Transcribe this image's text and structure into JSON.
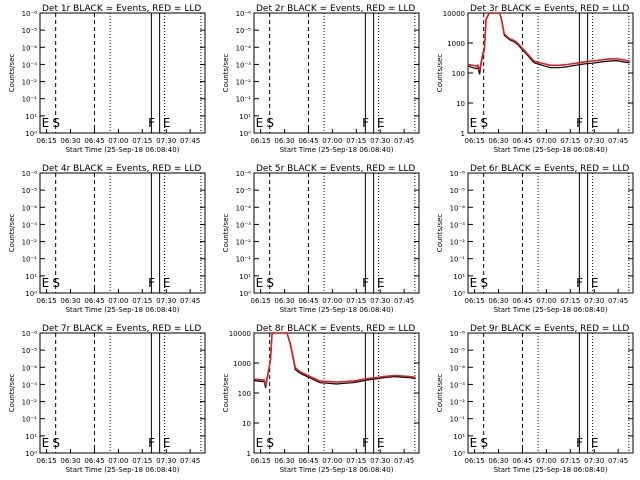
{
  "chart_data": [
    {
      "type": "line",
      "title": "Det 1r BLACK = Events, RED = LLD",
      "ylabel": "Counts/sec",
      "xlabel": "Start Time (25-Sep-18 06:08:40)",
      "yscale": "log",
      "yticks": [
        "10⁰",
        "10¹",
        "10⁻¹",
        "10⁻²",
        "10⁻³",
        "10⁻⁴",
        "10⁻⁵",
        "10⁻⁶"
      ],
      "xticks": [
        "06:15",
        "06:30",
        "06:45",
        "07:00",
        "07:15",
        "07:30",
        "07:45"
      ],
      "markers": [
        "E",
        "S",
        "F",
        "E"
      ],
      "series": []
    },
    {
      "type": "line",
      "title": "Det 2r BLACK = Events, RED = LLD",
      "ylabel": "Counts/sec",
      "xlabel": "Start Time (25-Sep-18 06:08:40)",
      "yscale": "log",
      "yticks": [
        "10⁰",
        "10¹",
        "10⁻¹",
        "10⁻²",
        "10⁻³",
        "10⁻⁴",
        "10⁻⁵",
        "10⁻⁶"
      ],
      "xticks": [
        "06:15",
        "06:30",
        "06:45",
        "07:00",
        "07:15",
        "07:30",
        "07:45"
      ],
      "markers": [
        "E",
        "S",
        "F",
        "E"
      ],
      "series": []
    },
    {
      "type": "line",
      "title": "Det 3r BLACK = Events, RED = LLD",
      "ylabel": "Counts/sec",
      "xlabel": "Start Time (25-Sep-18 06:08:40)",
      "yscale": "log",
      "yticks": [
        "1",
        "10",
        "100",
        "1000",
        "10000"
      ],
      "xticks": [
        "06:15",
        "06:30",
        "06:45",
        "07:00",
        "07:15",
        "07:30",
        "07:45"
      ],
      "markers": [
        "E",
        "S",
        "F",
        "E"
      ],
      "series": [
        {
          "color": "#000000",
          "x": [
            0,
            3,
            5,
            6,
            7,
            8,
            9,
            10,
            11,
            13,
            15,
            17,
            19,
            20,
            22,
            25,
            28,
            30,
            35,
            40,
            45,
            50,
            55,
            60,
            62,
            65,
            70,
            75,
            80,
            85,
            90,
            95,
            98
          ],
          "y": [
            170,
            150,
            140,
            150,
            90,
            200,
            400,
            600,
            6000,
            12000,
            14000,
            12000,
            10000,
            7000,
            1800,
            1300,
            1100,
            900,
            450,
            220,
            180,
            150,
            150,
            160,
            170,
            180,
            200,
            210,
            230,
            250,
            260,
            230,
            220
          ]
        },
        {
          "color": "#dd2222",
          "x": [
            0,
            3,
            5,
            6,
            7,
            8,
            9,
            10,
            11,
            13,
            15,
            17,
            19,
            20,
            22,
            25,
            28,
            30,
            35,
            40,
            45,
            50,
            55,
            60,
            62,
            65,
            70,
            75,
            80,
            85,
            90,
            95,
            98
          ],
          "y": [
            190,
            180,
            170,
            180,
            120,
            230,
            450,
            700,
            6500,
            13000,
            15000,
            13000,
            11000,
            7500,
            2000,
            1400,
            1200,
            1000,
            500,
            250,
            210,
            180,
            180,
            190,
            200,
            210,
            230,
            250,
            270,
            290,
            300,
            270,
            250
          ]
        }
      ]
    },
    {
      "type": "line",
      "title": "Det 4r BLACK = Events, RED = LLD",
      "ylabel": "Counts/sec",
      "xlabel": "Start Time (25-Sep-18 06:08:40)",
      "yscale": "log",
      "yticks": [
        "10⁰",
        "10¹",
        "10⁻¹",
        "10⁻²",
        "10⁻³",
        "10⁻⁴",
        "10⁻⁵",
        "10⁻⁶"
      ],
      "xticks": [
        "06:15",
        "06:30",
        "06:45",
        "07:00",
        "07:15",
        "07:30",
        "07:45"
      ],
      "markers": [
        "E",
        "S",
        "F",
        "E"
      ],
      "series": []
    },
    {
      "type": "line",
      "title": "Det 5r BLACK = Events, RED = LLD",
      "ylabel": "Counts/sec",
      "xlabel": "Start Time (25-Sep-18 06:08:40)",
      "yscale": "log",
      "yticks": [
        "10⁰",
        "10¹",
        "10⁻¹",
        "10⁻²",
        "10⁻³",
        "10⁻⁴",
        "10⁻⁵",
        "10⁻⁶"
      ],
      "xticks": [
        "06:15",
        "06:30",
        "06:45",
        "07:00",
        "07:15",
        "07:30",
        "07:45"
      ],
      "markers": [
        "E",
        "S",
        "F",
        "E"
      ],
      "series": []
    },
    {
      "type": "line",
      "title": "Det 6r BLACK = Events, RED = LLD",
      "ylabel": "Counts/sec",
      "xlabel": "Start Time (25-Sep-18 06:08:40)",
      "yscale": "log",
      "yticks": [
        "10⁰",
        "10¹",
        "10⁻¹",
        "10⁻²",
        "10⁻³",
        "10⁻⁴",
        "10⁻⁵",
        "10⁻⁶"
      ],
      "xticks": [
        "06:15",
        "06:30",
        "06:45",
        "07:00",
        "07:15",
        "07:30",
        "07:45"
      ],
      "markers": [
        "E",
        "S",
        "F",
        "E"
      ],
      "series": []
    },
    {
      "type": "line",
      "title": "Det 7r BLACK = Events, RED = LLD",
      "ylabel": "Counts/sec",
      "xlabel": "Start Time (25-Sep-18 06:08:40)",
      "yscale": "log",
      "yticks": [
        "10⁰",
        "10¹",
        "10⁻¹",
        "10⁻²",
        "10⁻³",
        "10⁻⁴",
        "10⁻⁵",
        "10⁻⁶"
      ],
      "xticks": [
        "06:15",
        "06:30",
        "06:45",
        "07:00",
        "07:15",
        "07:30",
        "07:45"
      ],
      "markers": [
        "E",
        "S",
        "F",
        "E"
      ],
      "series": []
    },
    {
      "type": "line",
      "title": "Det 8r BLACK = Events, RED = LLD",
      "ylabel": "Counts/sec",
      "xlabel": "Start Time (25-Sep-18 06:08:40)",
      "yscale": "log",
      "yticks": [
        "1",
        "10",
        "100",
        "1000",
        "10000"
      ],
      "xticks": [
        "06:15",
        "06:30",
        "06:45",
        "07:00",
        "07:15",
        "07:30",
        "07:45"
      ],
      "markers": [
        "E",
        "S",
        "F",
        "E"
      ],
      "series": [
        {
          "color": "#000000",
          "x": [
            0,
            3,
            5,
            6,
            7,
            8,
            9,
            10,
            11,
            13,
            15,
            17,
            19,
            20,
            22,
            25,
            28,
            30,
            35,
            40,
            45,
            50,
            55,
            60,
            62,
            65,
            70,
            75,
            80,
            85,
            90,
            95,
            98
          ],
          "y": [
            260,
            250,
            240,
            250,
            150,
            300,
            600,
            1200,
            12000,
            20000,
            22000,
            20000,
            18000,
            15000,
            4000,
            600,
            450,
            400,
            300,
            220,
            210,
            200,
            210,
            220,
            230,
            250,
            280,
            300,
            330,
            350,
            340,
            320,
            300
          ]
        },
        {
          "color": "#dd2222",
          "x": [
            0,
            3,
            5,
            6,
            7,
            8,
            9,
            10,
            11,
            13,
            15,
            17,
            19,
            20,
            22,
            25,
            28,
            30,
            35,
            40,
            45,
            50,
            55,
            60,
            62,
            65,
            70,
            75,
            80,
            85,
            90,
            95,
            98
          ],
          "y": [
            290,
            280,
            270,
            280,
            180,
            330,
            650,
            1300,
            13000,
            21000,
            23000,
            21000,
            19000,
            16000,
            4500,
            700,
            500,
            450,
            330,
            250,
            240,
            230,
            240,
            250,
            260,
            280,
            310,
            330,
            360,
            380,
            370,
            350,
            330
          ]
        }
      ]
    },
    {
      "type": "line",
      "title": "Det 9r BLACK = Events, RED = LLD",
      "ylabel": "Counts/sec",
      "xlabel": "Start Time (25-Sep-18 06:08:40)",
      "yscale": "log",
      "yticks": [
        "10⁰",
        "10¹",
        "10⁻¹",
        "10⁻²",
        "10⁻³",
        "10⁻⁴",
        "10⁻⁵",
        "10⁻⁶"
      ],
      "xticks": [
        "06:15",
        "06:30",
        "06:45",
        "07:00",
        "07:15",
        "07:30",
        "07:45"
      ],
      "markers": [
        "E",
        "S",
        "F",
        "E"
      ],
      "series": []
    }
  ]
}
